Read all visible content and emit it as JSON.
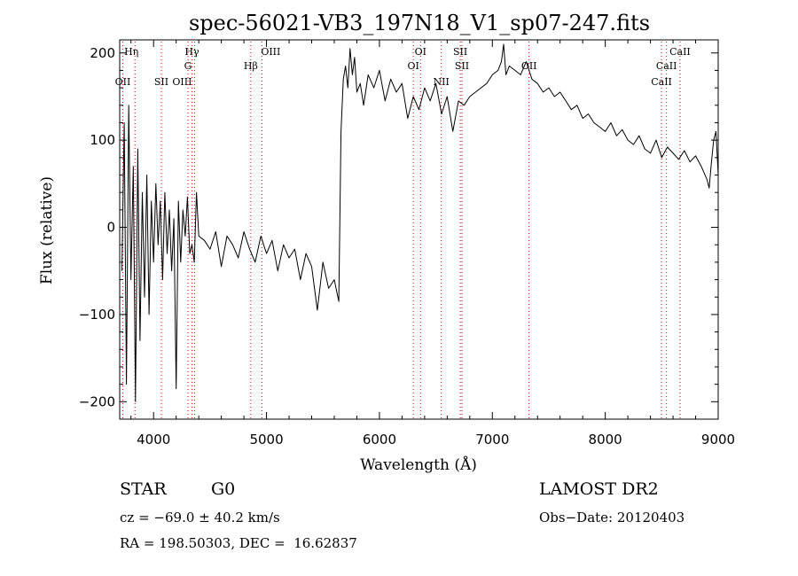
{
  "chart_data": {
    "type": "line",
    "title": "spec-56021-VB3_197N18_V1_sp07-247.fits",
    "xlabel": "Wavelength (Å)",
    "ylabel": "Flux (relative)",
    "xlim": [
      3700,
      9000
    ],
    "ylim": [
      -220,
      215
    ],
    "xticks": [
      4000,
      5000,
      6000,
      7000,
      8000,
      9000
    ],
    "yticks": [
      -200,
      -100,
      0,
      100,
      200
    ],
    "xtick_labels": [
      "4000",
      "5000",
      "6000",
      "7000",
      "8000",
      "9000"
    ],
    "ytick_labels": [
      "−200",
      "−100",
      "0",
      "100",
      "200"
    ],
    "line_color": "#000000",
    "marker_color": "#cc0000",
    "grid": false,
    "series": [
      {
        "x": [
          3720,
          3740,
          3760,
          3780,
          3800,
          3820,
          3840,
          3860,
          3880,
          3900,
          3920,
          3940,
          3960,
          3980,
          4000,
          4020,
          4040,
          4060,
          4080,
          4100,
          4120,
          4140,
          4160,
          4180,
          4200,
          4220,
          4240,
          4260,
          4280,
          4300,
          4320,
          4340,
          4360,
          4380,
          4400,
          4450,
          4500,
          4550,
          4600,
          4650,
          4700,
          4750,
          4800,
          4850,
          4900,
          4950,
          5000,
          5050,
          5100,
          5150,
          5200,
          5250,
          5300,
          5350,
          5400,
          5450,
          5500,
          5550,
          5600,
          5640,
          5660,
          5680,
          5700,
          5720,
          5740,
          5760,
          5780,
          5800,
          5830,
          5860,
          5900,
          5950,
          6000,
          6050,
          6100,
          6150,
          6200,
          6250,
          6300,
          6350,
          6400,
          6450,
          6500,
          6550,
          6600,
          6650,
          6700,
          6750,
          6800,
          6850,
          6900,
          6950,
          7000,
          7050,
          7080,
          7100,
          7120,
          7150,
          7200,
          7250,
          7300,
          7350,
          7400,
          7450,
          7500,
          7550,
          7600,
          7650,
          7700,
          7750,
          7800,
          7850,
          7900,
          7950,
          8000,
          8050,
          8100,
          8150,
          8200,
          8250,
          8300,
          8350,
          8400,
          8450,
          8500,
          8550,
          8600,
          8650,
          8700,
          8750,
          8800,
          8850,
          8900,
          8920,
          8940,
          8960,
          8980,
          9000
        ],
        "y": [
          -50,
          120,
          -180,
          140,
          -60,
          70,
          -200,
          90,
          -130,
          40,
          -80,
          60,
          -100,
          30,
          -40,
          50,
          -20,
          30,
          -60,
          40,
          -30,
          20,
          -50,
          10,
          -185,
          30,
          -40,
          20,
          -10,
          35,
          -30,
          -20,
          -40,
          40,
          -10,
          -15,
          -25,
          -5,
          -45,
          -10,
          -20,
          -35,
          -5,
          -25,
          -40,
          -10,
          -30,
          -15,
          -50,
          -20,
          -35,
          -25,
          -60,
          -30,
          -45,
          -95,
          -40,
          -70,
          -60,
          -85,
          110,
          170,
          185,
          160,
          205,
          175,
          195,
          155,
          165,
          140,
          175,
          160,
          180,
          145,
          170,
          155,
          165,
          125,
          150,
          135,
          160,
          145,
          165,
          130,
          150,
          110,
          145,
          140,
          150,
          155,
          160,
          165,
          175,
          180,
          190,
          210,
          175,
          185,
          180,
          175,
          190,
          170,
          165,
          155,
          160,
          150,
          155,
          145,
          135,
          140,
          125,
          130,
          120,
          115,
          110,
          120,
          105,
          112,
          100,
          95,
          105,
          90,
          85,
          100,
          80,
          92,
          85,
          78,
          88,
          75,
          82,
          70,
          55,
          45,
          75,
          100,
          110,
          60
        ]
      }
    ],
    "lines": [
      {
        "label": "Hη",
        "x": 3835,
        "row": 1,
        "dx": -4
      },
      {
        "label": "OII",
        "x": 3727,
        "row": 3,
        "dx": 0
      },
      {
        "label": "SII",
        "x": 4069,
        "row": 3,
        "dx": 0
      },
      {
        "label": "Hγ",
        "x": 4340,
        "row": 1,
        "dx": 0
      },
      {
        "label": "G",
        "x": 4305,
        "row": 2,
        "dx": 0
      },
      {
        "label": "OIII",
        "x": 4363,
        "row": 3,
        "dx": -14
      },
      {
        "label": "OIII",
        "x": 4959,
        "row": 1,
        "dx": 10
      },
      {
        "label": "Hβ",
        "x": 4861,
        "row": 2,
        "dx": 0
      },
      {
        "label": "OI",
        "x": 6300,
        "row": 2,
        "dx": 0
      },
      {
        "label": "OI",
        "x": 6364,
        "row": 1,
        "dx": 0
      },
      {
        "label": "NII",
        "x": 6548,
        "row": 3,
        "dx": 0
      },
      {
        "label": "SII",
        "x": 6716,
        "row": 1,
        "dx": 0
      },
      {
        "label": "SII",
        "x": 6731,
        "row": 2,
        "dx": 0
      },
      {
        "label": "OII",
        "x": 7325,
        "row": 2,
        "dx": 0
      },
      {
        "label": "CaII",
        "x": 8662,
        "row": 1,
        "dx": 0
      },
      {
        "label": "CaII",
        "x": 8542,
        "row": 2,
        "dx": 0
      },
      {
        "label": "CaII",
        "x": 8498,
        "row": 3,
        "dx": 0
      }
    ]
  },
  "info": {
    "object_class": "STAR",
    "subclass": "G0",
    "survey": "LAMOST DR2",
    "redshift_text": "cz = −69.0 ± 40.2 km/s",
    "obs_date_text": "Obs−Date: 20120403",
    "coords_text": "RA = 198.50303, DEC =  16.62837"
  }
}
